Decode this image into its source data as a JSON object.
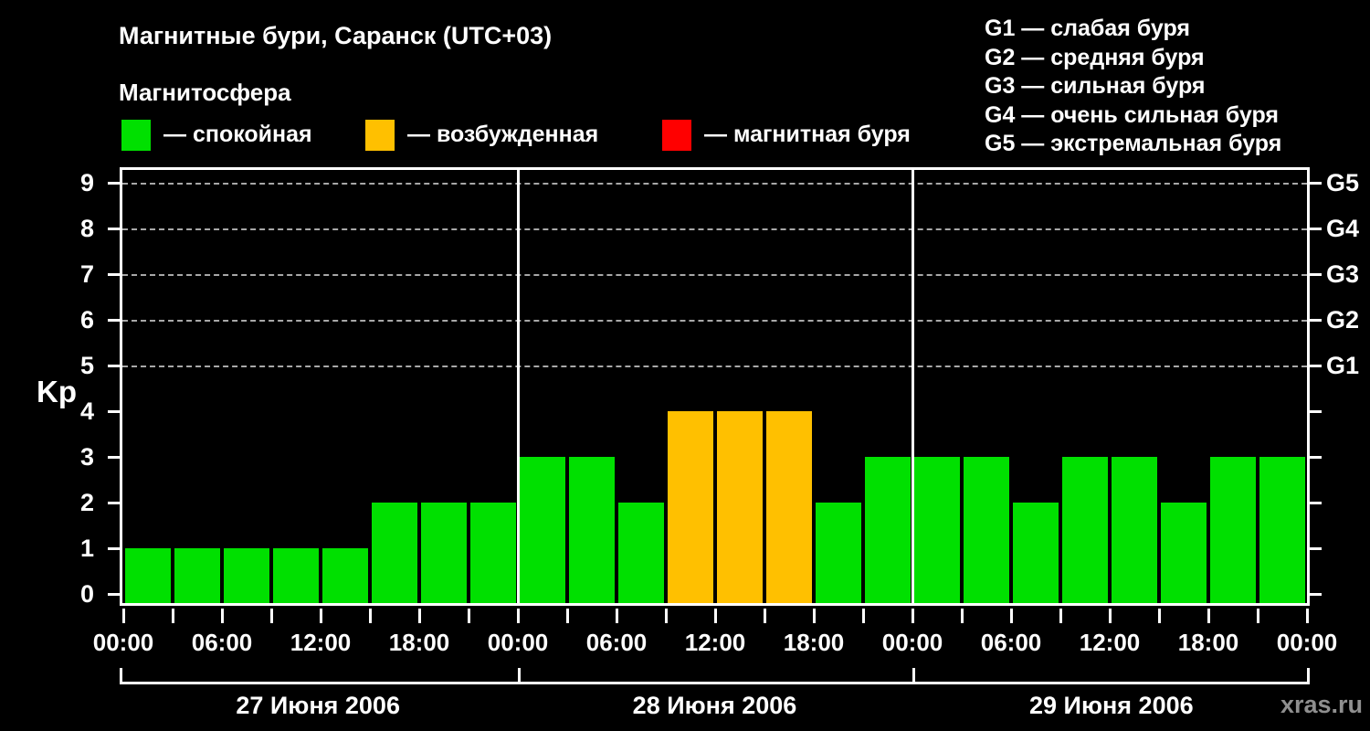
{
  "header": {
    "title": "Магнитные бури, Саранск (UTC+03)",
    "subtitle": "Магнитосфера"
  },
  "legend": {
    "items": [
      {
        "name": "quiet",
        "label": "— спокойная",
        "color": "#00e000"
      },
      {
        "name": "excited",
        "label": "— возбужденная",
        "color": "#ffc000"
      },
      {
        "name": "storm",
        "label": "— магнитная буря",
        "color": "#ff0000"
      }
    ]
  },
  "g_legend": {
    "lines": [
      "G1 — слабая буря",
      "G2 — средняя буря",
      "G3 — сильная буря",
      "G4 — очень сильная буря",
      "G5 — экстремальная буря"
    ]
  },
  "watermark": "xras.ru",
  "chart_data": {
    "type": "bar",
    "title": "Магнитные бури, Саранск (UTC+03)",
    "ylabel": "Kp",
    "ylim": [
      0,
      9
    ],
    "y_ticks": [
      0,
      1,
      2,
      3,
      4,
      5,
      6,
      7,
      8,
      9
    ],
    "gridlines_at": [
      5,
      6,
      7,
      8,
      9
    ],
    "grid": "dashed horizontal at G-storm levels",
    "right_axis_labels": [
      {
        "kp": 5,
        "label": "G1"
      },
      {
        "kp": 6,
        "label": "G2"
      },
      {
        "kp": 7,
        "label": "G3"
      },
      {
        "kp": 8,
        "label": "G4"
      },
      {
        "kp": 9,
        "label": "G5"
      }
    ],
    "x_tick_labels": [
      "00:00",
      "06:00",
      "12:00",
      "18:00",
      "00:00",
      "06:00",
      "12:00",
      "18:00",
      "00:00",
      "06:00",
      "12:00",
      "18:00",
      "00:00"
    ],
    "hours_per_bar": 3,
    "days": [
      {
        "date": "27 Июня 2006",
        "values": [
          1,
          1,
          1,
          1,
          1,
          2,
          2,
          2
        ]
      },
      {
        "date": "28 Июня 2006",
        "values": [
          3,
          3,
          2,
          4,
          4,
          4,
          2,
          3
        ]
      },
      {
        "date": "29 Июня 2006",
        "values": [
          3,
          3,
          2,
          3,
          3,
          2,
          3,
          3
        ]
      }
    ],
    "colors": {
      "quiet": "#00e000",
      "excited": "#ffc000",
      "storm": "#ff0000"
    },
    "color_rule": "Kp<=3 quiet(green), Kp=4 excited(orange), Kp>=5 storm(red)",
    "legend_position": "top-left and top-right",
    "background": "#000000"
  }
}
